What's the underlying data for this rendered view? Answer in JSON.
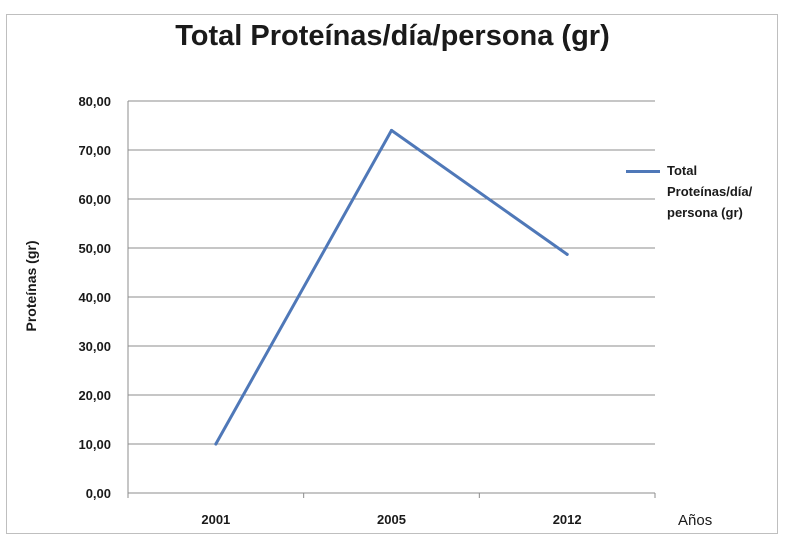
{
  "chart_data": {
    "type": "line",
    "title": "Total Proteínas/día/persona (gr)",
    "xlabel": "Años",
    "ylabel": "Proteínas  (gr)",
    "categories": [
      "2001",
      "2005",
      "2012"
    ],
    "series": [
      {
        "name": "Total Proteínas/día/ persona (gr)",
        "values": [
          10.0,
          74.0,
          48.7
        ],
        "color": "#4f78b8"
      }
    ],
    "ylim": [
      0,
      80
    ],
    "yticks": [
      "0,00",
      "10,00",
      "20,00",
      "30,00",
      "40,00",
      "50,00",
      "60,00",
      "70,00",
      "80,00"
    ],
    "grid": true,
    "legend_position": "right"
  }
}
